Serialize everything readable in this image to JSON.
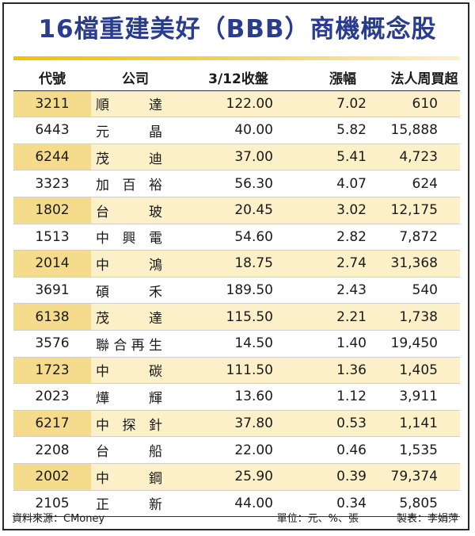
{
  "title": "16檔重建美好（BBB）商機概念股",
  "columns": [
    "代號",
    "公司",
    "3/12收盤",
    "漲幅",
    "法人周買超"
  ],
  "rows": [
    {
      "code": "3211",
      "name": "順達",
      "close": "122.00",
      "change": "7.02",
      "buy": "610"
    },
    {
      "code": "6443",
      "name": "元晶",
      "close": "40.00",
      "change": "5.82",
      "buy": "15,888"
    },
    {
      "code": "6244",
      "name": "茂迪",
      "close": "37.00",
      "change": "5.41",
      "buy": "4,723"
    },
    {
      "code": "3323",
      "name": "加百裕",
      "close": "56.30",
      "change": "4.07",
      "buy": "624"
    },
    {
      "code": "1802",
      "name": "台玻",
      "close": "20.45",
      "change": "3.02",
      "buy": "12,175"
    },
    {
      "code": "1513",
      "name": "中興電",
      "close": "54.60",
      "change": "2.82",
      "buy": "7,872"
    },
    {
      "code": "2014",
      "name": "中鴻",
      "close": "18.75",
      "change": "2.74",
      "buy": "31,368"
    },
    {
      "code": "3691",
      "name": "碩禾",
      "close": "189.50",
      "change": "2.43",
      "buy": "540"
    },
    {
      "code": "6138",
      "name": "茂達",
      "close": "115.50",
      "change": "2.21",
      "buy": "1,738"
    },
    {
      "code": "3576",
      "name": "聯合再生",
      "close": "14.50",
      "change": "1.40",
      "buy": "19,450"
    },
    {
      "code": "1723",
      "name": "中碳",
      "close": "111.50",
      "change": "1.36",
      "buy": "1,405"
    },
    {
      "code": "2023",
      "name": "燁輝",
      "close": "13.60",
      "change": "1.12",
      "buy": "3,911"
    },
    {
      "code": "6217",
      "name": "中探針",
      "close": "37.80",
      "change": "0.53",
      "buy": "1,141"
    },
    {
      "code": "2208",
      "name": "台船",
      "close": "22.00",
      "change": "0.46",
      "buy": "1,535"
    },
    {
      "code": "2002",
      "name": "中鋼",
      "close": "25.90",
      "change": "0.39",
      "buy": "79,374"
    },
    {
      "code": "2105",
      "name": "正新",
      "close": "44.00",
      "change": "0.34",
      "buy": "5,805"
    }
  ],
  "footer": {
    "source": "資料來源：CMoney",
    "unit": "單位：元、%、張",
    "maker": "製表：李娟萍"
  },
  "colors": {
    "title": "#2a3c8f",
    "rule": "#f2c200",
    "row_alt": "#fbf0c8",
    "code_alt": "#f5dc8c"
  }
}
